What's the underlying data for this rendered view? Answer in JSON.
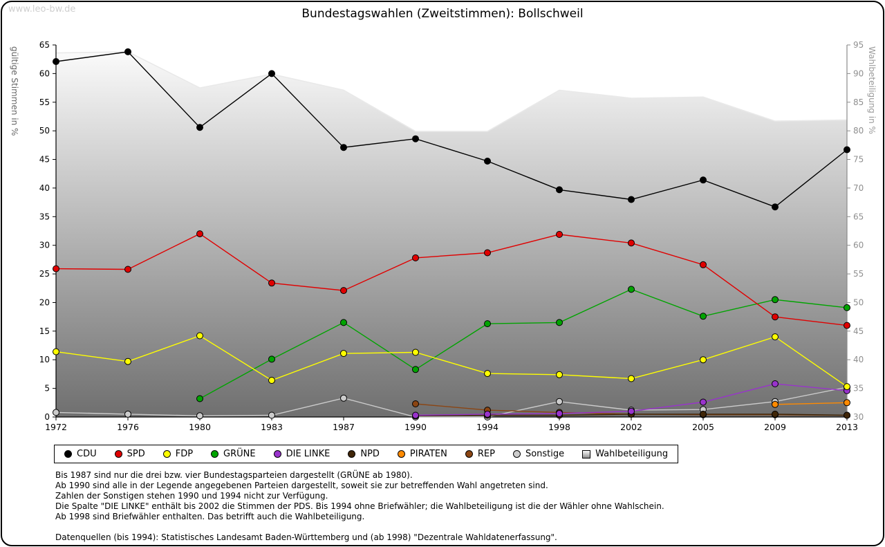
{
  "watermark": "www.leo-bw.de",
  "title": "Bundestagswahlen (Zweitstimmen): Bollschweil",
  "chart_data": {
    "type": "line",
    "x": [
      1972,
      1976,
      1980,
      1983,
      1987,
      1990,
      1994,
      1998,
      2002,
      2005,
      2009,
      2013
    ],
    "left_axis": {
      "label": "gültige Stimmen in %",
      "min": 0,
      "max": 65,
      "step": 5
    },
    "right_axis": {
      "label": "Wahlbeteiligung in %",
      "min": 30,
      "max": 95,
      "step": 5
    },
    "grid": false,
    "legend_position": "bottom",
    "series": [
      {
        "key": "cdu",
        "name": "CDU",
        "color": "#000000",
        "axis": "left",
        "values": [
          62.1,
          63.8,
          50.6,
          60.0,
          47.1,
          48.6,
          44.7,
          39.7,
          38.0,
          41.4,
          36.7,
          46.7
        ]
      },
      {
        "key": "spd",
        "name": "SPD",
        "color": "#e00000",
        "axis": "left",
        "values": [
          25.9,
          25.8,
          32.0,
          23.4,
          22.1,
          27.8,
          28.7,
          31.9,
          30.4,
          26.6,
          17.5,
          16.0
        ]
      },
      {
        "key": "fdp",
        "name": "FDP",
        "color": "#ffff00",
        "axis": "left",
        "values": [
          11.4,
          9.7,
          14.2,
          6.4,
          11.1,
          11.3,
          7.6,
          7.4,
          6.7,
          10.0,
          14.0,
          5.3
        ]
      },
      {
        "key": "gruene",
        "name": "GRÜNE",
        "color": "#00a400",
        "axis": "left",
        "values": [
          null,
          null,
          3.2,
          10.1,
          16.5,
          8.3,
          16.3,
          16.5,
          22.3,
          17.6,
          20.5,
          19.1
        ]
      },
      {
        "key": "die-linke",
        "name": "DIE LINKE",
        "color": "#9933cc",
        "axis": "left",
        "values": [
          null,
          null,
          null,
          null,
          null,
          0.3,
          0.5,
          0.6,
          1.0,
          2.6,
          5.8,
          4.6
        ]
      },
      {
        "key": "npd",
        "name": "NPD",
        "color": "#402608",
        "axis": "left",
        "values": [
          null,
          null,
          null,
          null,
          null,
          0.2,
          0.3,
          0.3,
          0.5,
          0.5,
          0.5,
          0.3
        ]
      },
      {
        "key": "piraten",
        "name": "PIRATEN",
        "color": "#ff8a00",
        "axis": "left",
        "values": [
          null,
          null,
          null,
          null,
          null,
          null,
          null,
          null,
          null,
          null,
          2.2,
          2.5
        ]
      },
      {
        "key": "rep",
        "name": "REP",
        "color": "#8b4513",
        "axis": "left",
        "values": [
          null,
          null,
          null,
          null,
          null,
          2.3,
          1.2,
          0.8,
          0.5,
          0.4,
          0.4,
          0.3
        ]
      },
      {
        "key": "sonstige",
        "name": "Sonstige",
        "color": "#cccccc",
        "axis": "left",
        "values": [
          0.8,
          0.5,
          0.2,
          0.3,
          3.3,
          0.0,
          0.0,
          2.7,
          1.2,
          1.3,
          2.7,
          5.2
        ]
      }
    ],
    "participation": {
      "key": "wahlbeteiligung",
      "name": "Wahlbeteiligung",
      "axis": "right",
      "type": "area",
      "values": [
        93.6,
        93.8,
        87.5,
        89.9,
        87.1,
        79.9,
        79.9,
        87.1,
        85.7,
        85.9,
        81.7,
        81.9
      ]
    }
  },
  "notes": [
    "Bis 1987 sind nur die drei bzw. vier Bundestagsparteien dargestellt (GRÜNE ab 1980).",
    "Ab 1990 sind alle in der Legende angegebenen Parteien dargestellt, soweit sie zur betreffenden Wahl angetreten sind.",
    "Zahlen der Sonstigen stehen 1990 und 1994 nicht zur Verfügung.",
    "Die Spalte \"DIE LINKE\" enthält bis 2002 die Stimmen der PDS. Bis 1994 ohne Briefwähler; die Wahlbeteiligung ist die der Wähler ohne Wahlschein.",
    "Ab 1998 sind Briefwähler enthalten. Das betrifft auch die Wahlbeteiligung.",
    "",
    "Datenquellen (bis 1994): Statistisches Landesamt Baden-Württemberg und (ab 1998) \"Dezentrale Wahldatenerfassung\"."
  ]
}
